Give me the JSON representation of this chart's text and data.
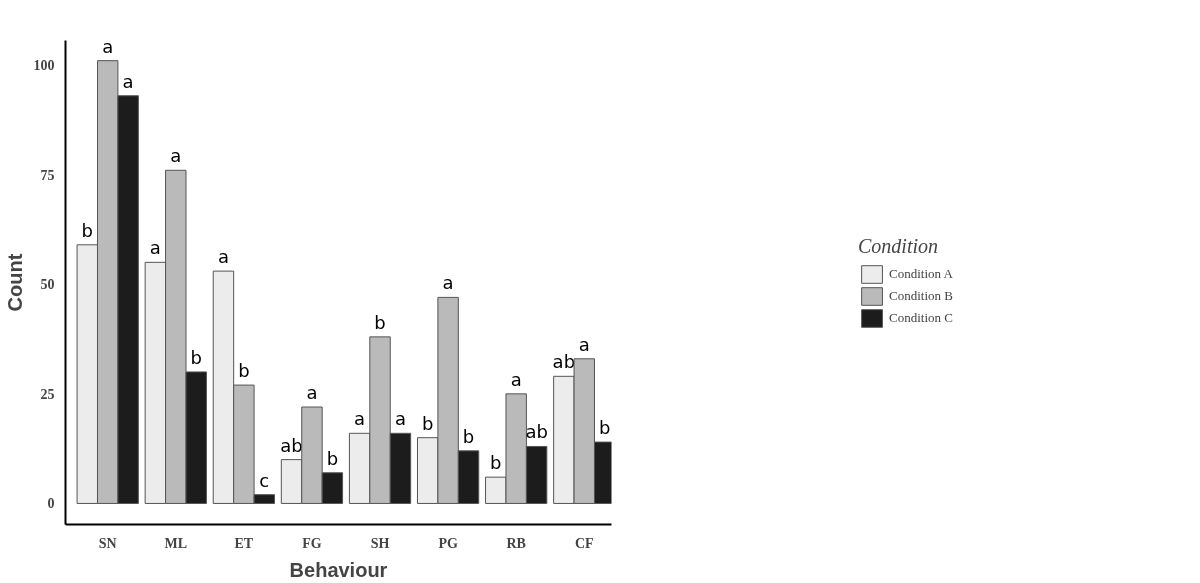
{
  "chart_data": {
    "type": "bar",
    "xlabel": "Behaviour",
    "ylabel": "Count",
    "legend_title": "Condition",
    "legend": "right",
    "grid": false,
    "categories": [
      "SN",
      "ML",
      "ET",
      "FG",
      "SH",
      "PG",
      "RB",
      "CF"
    ],
    "ylim": [
      -4.8,
      105.6
    ],
    "yticks": [
      0,
      25,
      50,
      75,
      100
    ],
    "series": [
      {
        "name": "Condition A",
        "color": "#ececec",
        "values": [
          59,
          55,
          53,
          10,
          16,
          15,
          6,
          29
        ],
        "value_labels": [
          "b",
          "a",
          "a",
          "ab",
          "a",
          "b",
          "b",
          "ab"
        ]
      },
      {
        "name": "Condition B",
        "color": "#bababa",
        "values": [
          101,
          76,
          27,
          22,
          38,
          47,
          25,
          33
        ],
        "value_labels": [
          "a",
          "a",
          "b",
          "a",
          "b",
          "a",
          "a",
          "a"
        ]
      },
      {
        "name": "Condition C",
        "color": "#1c1c1c",
        "values": [
          93,
          30,
          2,
          7,
          16,
          12,
          13,
          14
        ],
        "value_labels": [
          "a",
          "b",
          "c",
          "b",
          "a",
          "b",
          "ab",
          "b"
        ]
      }
    ]
  }
}
